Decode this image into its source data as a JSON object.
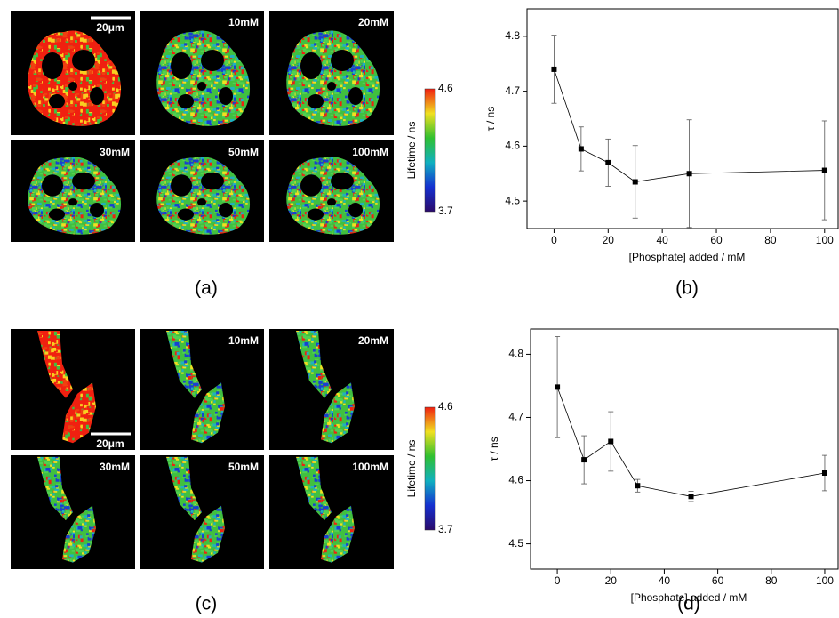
{
  "figure": {
    "panels": [
      {
        "label": "(a)",
        "scale_bar": "20μm",
        "concentrations": [
          "10mM",
          "20mM",
          "30mM",
          "50mM",
          "100mM"
        ],
        "colorbar": {
          "title": "Lifetime / ns",
          "ticks": [
            3.7,
            4.6
          ]
        }
      },
      {
        "label": "(c)",
        "scale_bar": "20μm",
        "concentrations": [
          "10mM",
          "20mM",
          "30mM",
          "50mM",
          "100mM"
        ],
        "colorbar": {
          "title": "Lifetime / ns",
          "ticks": [
            3.7,
            4.6
          ]
        }
      }
    ]
  },
  "chart_data": [
    {
      "type": "line",
      "label": "(b)",
      "xlabel": "[Phosphate] added / mM",
      "ylabel": "τ / ns",
      "x": [
        0,
        10,
        20,
        30,
        50,
        100
      ],
      "values": [
        4.74,
        4.595,
        4.57,
        4.535,
        4.55,
        4.556
      ],
      "errors": [
        0.062,
        0.04,
        0.043,
        0.066,
        0.098,
        0.09
      ],
      "color": "#000000",
      "xlim": [
        -10,
        105
      ],
      "ylim": [
        4.45,
        4.85
      ],
      "xticks": [
        0,
        20,
        40,
        60,
        80,
        100
      ],
      "yticks": [
        4.5,
        4.6,
        4.7,
        4.8
      ]
    },
    {
      "type": "line",
      "label": "(d)",
      "xlabel": "[Phosphate] added / mM",
      "ylabel": "τ / ns",
      "x": [
        0,
        10,
        20,
        30,
        50,
        100
      ],
      "values": [
        4.748,
        4.633,
        4.662,
        4.592,
        4.575,
        4.612
      ],
      "errors": [
        0.08,
        0.038,
        0.047,
        0.01,
        0.008,
        0.028
      ],
      "color": "#000000",
      "xlim": [
        -10,
        105
      ],
      "ylim": [
        4.46,
        4.84
      ],
      "xticks": [
        0,
        20,
        40,
        60,
        80,
        100
      ],
      "yticks": [
        4.5,
        4.6,
        4.7,
        4.8
      ]
    }
  ]
}
